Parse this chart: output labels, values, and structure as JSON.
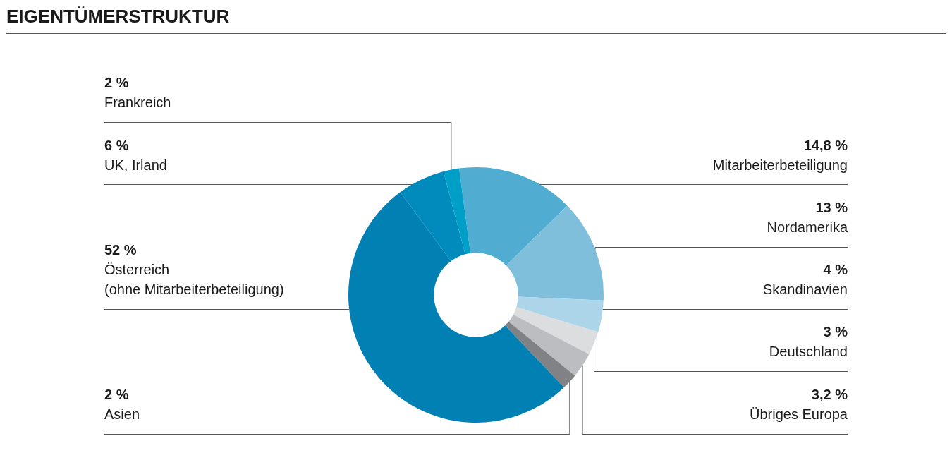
{
  "chart_data": {
    "type": "donut",
    "title": "EIGENTÜMERSTRUKTUR",
    "categories": [
      "Mitarbeiterbeteiligung",
      "Nordamerika",
      "Skandinavien",
      "Deutschland",
      "Übriges Europa",
      "Asien",
      "Österreich\n(ohne Mitarbeiterbeteiligung)",
      "UK, Irland",
      "Frankreich"
    ],
    "values": [
      14.8,
      13,
      4,
      3,
      3.2,
      2,
      52,
      6,
      2
    ],
    "value_labels": [
      "14,8 %",
      "13 %",
      "4 %",
      "3 %",
      "3,2 %",
      "2 %",
      "52 %",
      "6 %",
      "2 %"
    ],
    "colors": [
      "#50acd1",
      "#80bfdc",
      "#acd5e9",
      "#dcdddf",
      "#bcbdc0",
      "#808286",
      "#0080b3",
      "#008bbc",
      "#009fc8"
    ],
    "legend": false
  }
}
